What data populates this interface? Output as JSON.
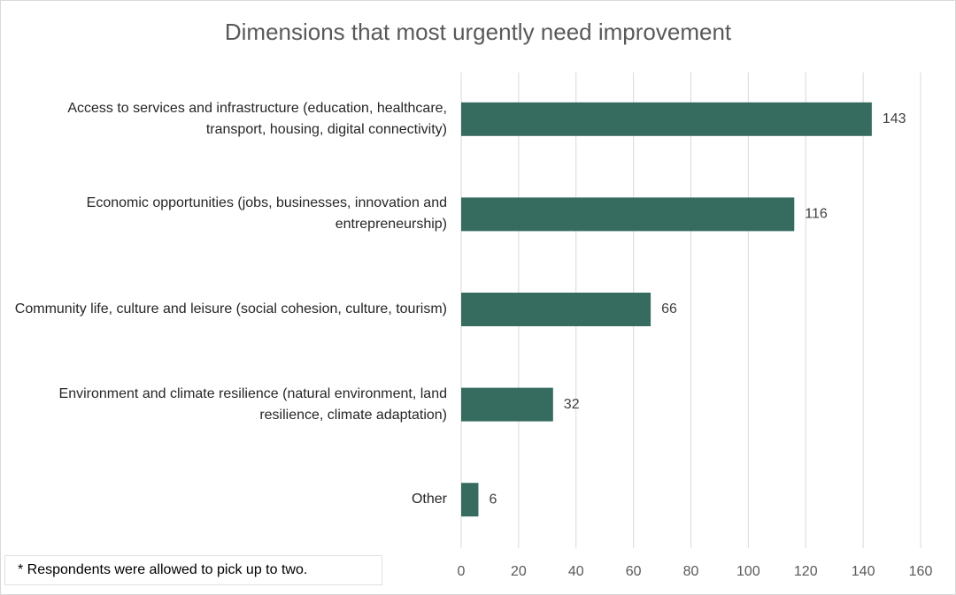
{
  "chart_data": {
    "type": "bar",
    "orientation": "horizontal",
    "title": "Dimensions that most urgently need improvement",
    "categories": [
      "Access to services and infrastructure (education, healthcare, transport, housing, digital connectivity)",
      "Economic opportunities (jobs, businesses, innovation and entrepreneurship)",
      "Community life, culture and leisure (social cohesion, culture, tourism)",
      "Environment and climate resilience (natural environment, land resilience, climate adaptation)",
      "Other"
    ],
    "values": [
      143,
      116,
      66,
      32,
      6
    ],
    "color": "#366b5f",
    "xlim": [
      0,
      160
    ],
    "xticks": [
      0,
      20,
      40,
      60,
      80,
      100,
      120,
      140,
      160
    ],
    "grid": true,
    "annotation": "* Respondents were allowed to pick up to two."
  }
}
